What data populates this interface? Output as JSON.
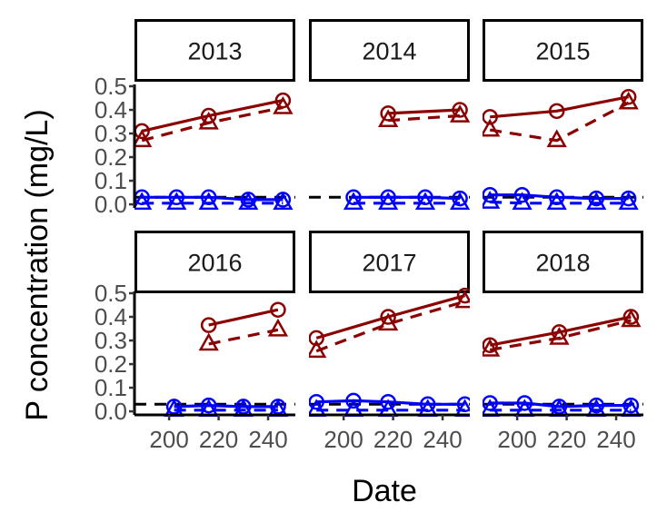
{
  "chart_data": {
    "type": "line",
    "xlabel": "Date",
    "ylabel": "P concentration (mg/L)",
    "xlim": [
      186,
      251
    ],
    "ylim": [
      -0.015,
      0.5
    ],
    "x_ticks": [
      200,
      220,
      240
    ],
    "x_tick_labels": [
      "200",
      "220",
      "240"
    ],
    "y_ticks": [
      0.0,
      0.1,
      0.2,
      0.3,
      0.4,
      0.5
    ],
    "y_tick_labels": [
      "0.0",
      "0.1",
      "0.2",
      "0.3",
      "0.4",
      "0.5"
    ],
    "reference_line": {
      "y": 0.03,
      "style": "dashed",
      "color": "#000000"
    },
    "grid": false,
    "legend": "none",
    "colors": {
      "dark_red": "#8b0000",
      "blue": "#0000ff",
      "black": "#000000"
    },
    "markers": {
      "circle": "circle",
      "triangle": "triangle"
    },
    "panels": [
      {
        "year": "2013",
        "series": [
          {
            "color": "dark_red",
            "line": "solid",
            "marker": "circle",
            "x": [
              189,
              216,
              246
            ],
            "y": [
              0.31,
              0.375,
              0.44
            ]
          },
          {
            "color": "dark_red",
            "line": "dashed",
            "marker": "triangle",
            "x": [
              189,
              216,
              246
            ],
            "y": [
              0.27,
              0.345,
              0.41
            ]
          },
          {
            "color": "blue",
            "line": "solid",
            "marker": "circle",
            "x": [
              189,
              203,
              216,
              232,
              246
            ],
            "y": [
              0.03,
              0.03,
              0.03,
              0.02,
              0.02
            ]
          },
          {
            "color": "blue",
            "line": "dashed",
            "marker": "triangle",
            "x": [
              189,
              203,
              216,
              232,
              246
            ],
            "y": [
              0.005,
              0.005,
              0.005,
              0.005,
              0.005
            ]
          }
        ]
      },
      {
        "year": "2014",
        "series": [
          {
            "color": "dark_red",
            "line": "solid",
            "marker": "circle",
            "x": [
              218,
              247
            ],
            "y": [
              0.385,
              0.4
            ]
          },
          {
            "color": "dark_red",
            "line": "dashed",
            "marker": "triangle",
            "x": [
              218,
              247
            ],
            "y": [
              0.355,
              0.375
            ]
          },
          {
            "color": "blue",
            "line": "solid",
            "marker": "circle",
            "x": [
              204,
              218,
              233,
              247
            ],
            "y": [
              0.03,
              0.03,
              0.03,
              0.025
            ]
          },
          {
            "color": "blue",
            "line": "dashed",
            "marker": "triangle",
            "x": [
              204,
              218,
              233,
              247
            ],
            "y": [
              0.005,
              0.005,
              0.005,
              0.005
            ]
          }
        ]
      },
      {
        "year": "2015",
        "series": [
          {
            "color": "dark_red",
            "line": "solid",
            "marker": "circle",
            "x": [
              189,
              216,
              245
            ],
            "y": [
              0.37,
              0.395,
              0.455
            ]
          },
          {
            "color": "dark_red",
            "line": "dashed",
            "marker": "triangle",
            "x": [
              189,
              216,
              245
            ],
            "y": [
              0.315,
              0.27,
              0.43
            ]
          },
          {
            "color": "blue",
            "line": "solid",
            "marker": "circle",
            "x": [
              189,
              202,
              216,
              232,
              245
            ],
            "y": [
              0.04,
              0.04,
              0.03,
              0.025,
              0.025
            ]
          },
          {
            "color": "blue",
            "line": "dashed",
            "marker": "triangle",
            "x": [
              189,
              202,
              216,
              232,
              245
            ],
            "y": [
              0.01,
              0.005,
              0.005,
              0.005,
              0.005
            ]
          }
        ]
      },
      {
        "year": "2016",
        "series": [
          {
            "color": "dark_red",
            "line": "solid",
            "marker": "circle",
            "x": [
              216,
              244
            ],
            "y": [
              0.365,
              0.43
            ]
          },
          {
            "color": "dark_red",
            "line": "dashed",
            "marker": "triangle",
            "x": [
              216,
              244
            ],
            "y": [
              0.285,
              0.345
            ]
          },
          {
            "color": "blue",
            "line": "solid",
            "marker": "circle",
            "x": [
              202,
              216,
              230,
              244
            ],
            "y": [
              0.02,
              0.025,
              0.02,
              0.02
            ]
          },
          {
            "color": "blue",
            "line": "dashed",
            "marker": "triangle",
            "x": [
              202,
              216,
              230,
              244
            ],
            "y": [
              0.005,
              0.005,
              0.005,
              0.005
            ]
          }
        ]
      },
      {
        "year": "2017",
        "series": [
          {
            "color": "dark_red",
            "line": "solid",
            "marker": "circle",
            "x": [
              189,
              218,
              249
            ],
            "y": [
              0.31,
              0.4,
              0.49
            ]
          },
          {
            "color": "dark_red",
            "line": "dashed",
            "marker": "triangle",
            "x": [
              189,
              218,
              249
            ],
            "y": [
              0.255,
              0.37,
              0.465
            ]
          },
          {
            "color": "blue",
            "line": "solid",
            "marker": "circle",
            "x": [
              189,
              204,
              218,
              234,
              249
            ],
            "y": [
              0.04,
              0.045,
              0.04,
              0.03,
              0.03
            ]
          },
          {
            "color": "blue",
            "line": "dashed",
            "marker": "triangle",
            "x": [
              189,
              204,
              218,
              234,
              249
            ],
            "y": [
              0.005,
              0.005,
              0.005,
              0.005,
              0.005
            ]
          }
        ]
      },
      {
        "year": "2018",
        "series": [
          {
            "color": "dark_red",
            "line": "solid",
            "marker": "circle",
            "x": [
              189,
              217,
              246
            ],
            "y": [
              0.28,
              0.335,
              0.4
            ]
          },
          {
            "color": "dark_red",
            "line": "dashed",
            "marker": "triangle",
            "x": [
              189,
              217,
              246
            ],
            "y": [
              0.26,
              0.31,
              0.385
            ]
          },
          {
            "color": "blue",
            "line": "solid",
            "marker": "circle",
            "x": [
              189,
              203,
              217,
              232,
              246
            ],
            "y": [
              0.035,
              0.035,
              0.02,
              0.025,
              0.025
            ]
          },
          {
            "color": "blue",
            "line": "dashed",
            "marker": "triangle",
            "x": [
              189,
              203,
              217,
              232,
              246
            ],
            "y": [
              0.005,
              0.005,
              0.005,
              0.005,
              0.005
            ]
          }
        ]
      }
    ]
  }
}
